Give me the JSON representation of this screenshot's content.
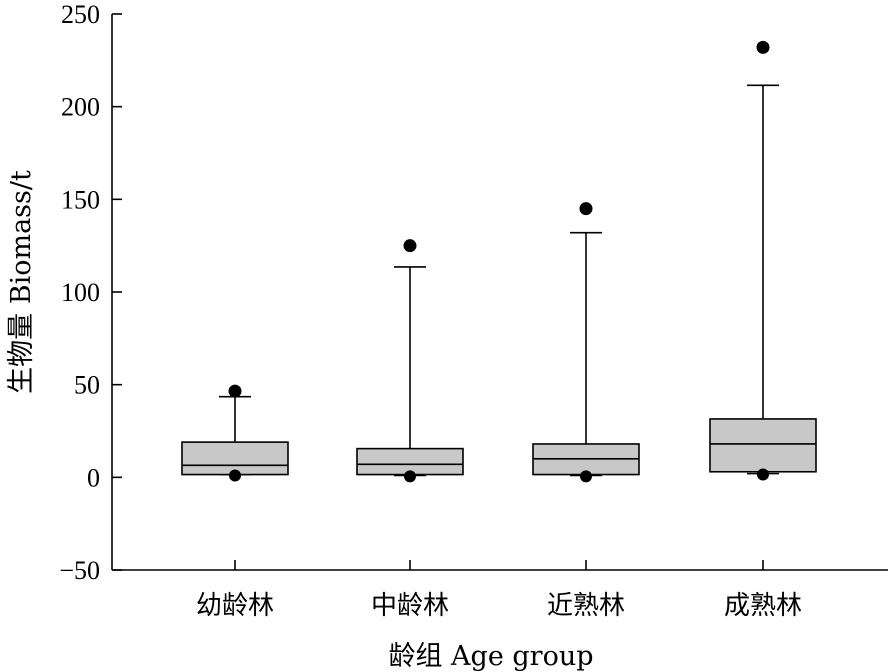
{
  "chart_data": {
    "type": "boxplot",
    "xlabel": "龄组 Age group",
    "ylabel": "生物量 Biomass/t",
    "ylim": [
      -50,
      250
    ],
    "yticks": [
      -50,
      0,
      50,
      100,
      150,
      200,
      250
    ],
    "ytick_labels": [
      "−50",
      "0",
      "50",
      "100",
      "150",
      "200",
      "250"
    ],
    "grid": false,
    "box_color": "#c8c8c8",
    "categories": [
      "幼龄林",
      "中龄林",
      "近熟林",
      "成熟林"
    ],
    "boxes": [
      {
        "category": "幼龄林",
        "whisker_low": 1.5,
        "q1": 1.5,
        "median": 6.5,
        "q3": 19,
        "whisker_high": 43.5,
        "outliers_high": [
          46.5
        ],
        "outliers_low": [
          1
        ]
      },
      {
        "category": "中龄林",
        "whisker_low": 1,
        "q1": 1.5,
        "median": 7,
        "q3": 15.5,
        "whisker_high": 113.5,
        "outliers_high": [
          125
        ],
        "outliers_low": [
          0.5
        ]
      },
      {
        "category": "近熟林",
        "whisker_low": 1,
        "q1": 1.5,
        "median": 10,
        "q3": 18,
        "whisker_high": 132,
        "outliers_high": [
          145
        ],
        "outliers_low": [
          0.5
        ]
      },
      {
        "category": "成熟林",
        "whisker_low": 2,
        "q1": 3,
        "median": 18,
        "q3": 31.5,
        "whisker_high": 211.5,
        "outliers_high": [
          232
        ],
        "outliers_low": [
          1.5
        ]
      }
    ]
  }
}
